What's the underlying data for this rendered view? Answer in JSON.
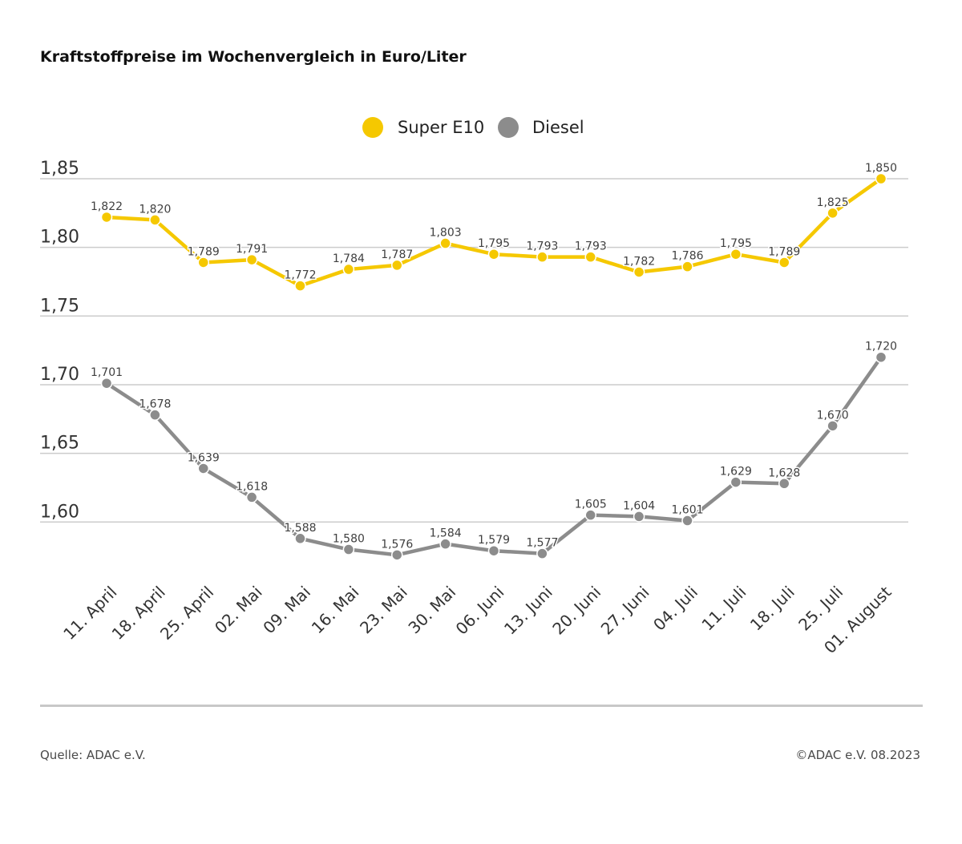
{
  "header": {
    "title": "Kraftstoffpreise im Wochenvergleich in Euro/Liter"
  },
  "footer": {
    "source": "Quelle: ADAC e.V.",
    "copyright": "©ADAC e.V. 08.2023"
  },
  "colors": {
    "super_e10": "#f5c800",
    "diesel": "#8c8c8c",
    "grid": "#cccccc",
    "label": "#404040"
  },
  "chart_data": {
    "type": "line",
    "title": "Kraftstoffpreise im Wochenvergleich in Euro/Liter",
    "xlabel": "",
    "ylabel": "",
    "legend_position": "top-center",
    "grid": true,
    "ylim": [
      1.575,
      1.875
    ],
    "yticks": [
      "1,85",
      "1,80",
      "1,75",
      "1,70",
      "1,65",
      "1,60"
    ],
    "ytick_values": [
      1.85,
      1.8,
      1.75,
      1.7,
      1.65,
      1.6
    ],
    "categories": [
      "11. April",
      "18. April",
      "25. April",
      "02. Mai",
      "09. Mai",
      "16. Mai",
      "23. Mai",
      "30. Mai",
      "06. Juni",
      "13. Juni",
      "20. Juni",
      "27. Juni",
      "04. Juli",
      "11. Juli",
      "18. Juli",
      "25. Juli",
      "01. August"
    ],
    "series": [
      {
        "name": "Super E10",
        "color": "#f5c800",
        "values": [
          1.822,
          1.82,
          1.789,
          1.791,
          1.772,
          1.784,
          1.787,
          1.803,
          1.795,
          1.793,
          1.793,
          1.782,
          1.786,
          1.795,
          1.789,
          1.825,
          1.85
        ],
        "labels": [
          "1,822",
          "1,820",
          "1,789",
          "1,791",
          "1,772",
          "1,784",
          "1,787",
          "1,803",
          "1,795",
          "1,793",
          "1,793",
          "1,782",
          "1,786",
          "1,795",
          "1,789",
          "1,825",
          "1,850"
        ]
      },
      {
        "name": "Diesel",
        "color": "#8c8c8c",
        "values": [
          1.701,
          1.678,
          1.639,
          1.618,
          1.588,
          1.58,
          1.576,
          1.584,
          1.579,
          1.577,
          1.605,
          1.604,
          1.601,
          1.629,
          1.628,
          1.67,
          1.72
        ],
        "labels": [
          "1,701",
          "1,678",
          "1,639",
          "1,618",
          "1,588",
          "1,580",
          "1,576",
          "1,584",
          "1,579",
          "1,577",
          "1,605",
          "1,604",
          "1,601",
          "1,629",
          "1,628",
          "1,670",
          "1,720"
        ]
      }
    ]
  }
}
